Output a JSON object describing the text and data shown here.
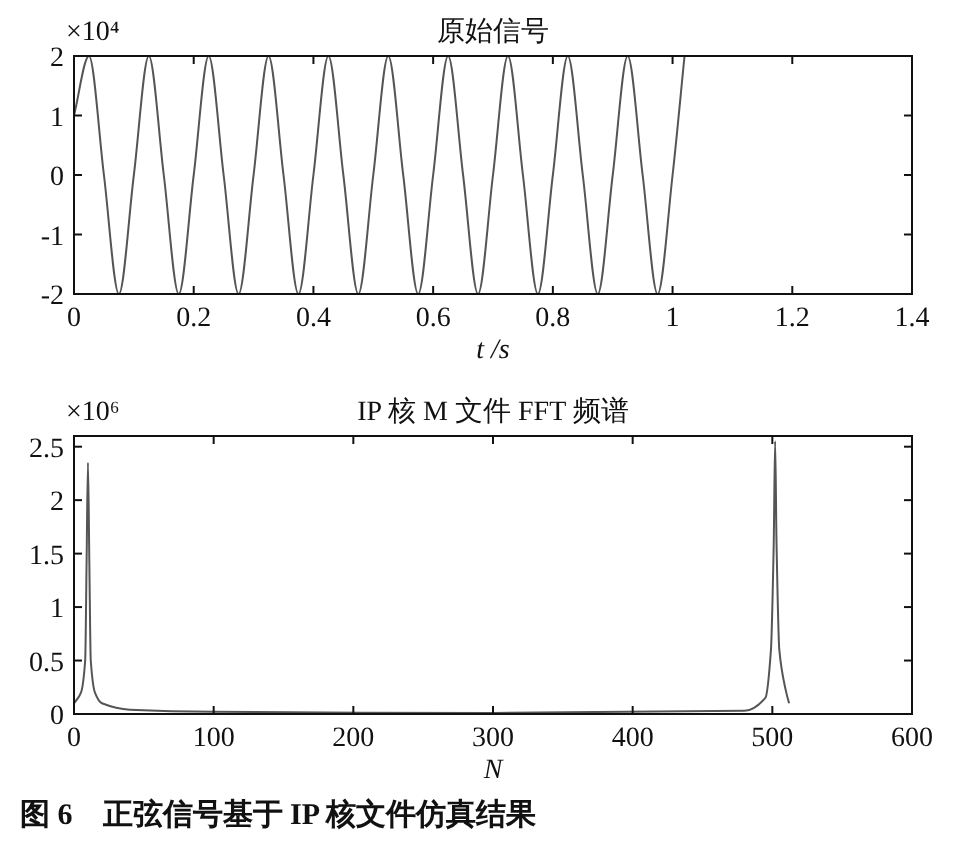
{
  "chart_data": [
    {
      "type": "line",
      "title": "原始信号",
      "xlabel": "t /s",
      "annotations": [
        "×10⁴"
      ],
      "x": [
        0,
        0.025,
        0.05,
        0.075,
        0.1,
        0.125,
        0.15,
        0.175,
        0.2,
        0.225,
        0.25,
        0.275,
        0.3,
        0.325,
        0.35,
        0.375,
        0.4,
        0.425,
        0.45,
        0.475,
        0.5,
        0.525,
        0.55,
        0.575,
        0.6,
        0.625,
        0.65,
        0.675,
        0.7,
        0.725,
        0.75,
        0.775,
        0.8,
        0.825,
        0.85,
        0.875,
        0.9,
        0.925,
        0.95,
        0.975,
        1.0,
        1.02
      ],
      "series": [
        {
          "color": "#555555",
          "values": [
            1,
            2,
            0,
            -2,
            0,
            2,
            0,
            -2,
            0,
            2,
            0,
            -2,
            0,
            2,
            0,
            -2,
            0,
            2,
            0,
            -2,
            0,
            2,
            0,
            -2,
            0,
            2,
            0,
            -2,
            0,
            2,
            0,
            -2,
            0,
            2,
            0,
            -2,
            0,
            2,
            0,
            -2,
            0,
            2
          ]
        }
      ],
      "xlim": [
        0,
        1.4
      ],
      "xticks": [
        0,
        0.2,
        0.4,
        0.6,
        0.8,
        1,
        1.2,
        1.4
      ],
      "ylim": [
        -2,
        2
      ],
      "yticks": [
        {
          "value": -2,
          "label": "-2"
        },
        {
          "value": -1,
          "label": "-1"
        },
        0,
        1,
        2
      ],
      "grid": false
    },
    {
      "type": "line",
      "title": "IP 核 M 文件 FFT 频谱",
      "xlabel": "N",
      "annotations": [
        "×10⁶",
        "图 6　正弦信号基于 IP 核文件仿真结果"
      ],
      "x": [
        0,
        5,
        8,
        9,
        10,
        11,
        12,
        15,
        20,
        40,
        100,
        300,
        480,
        495,
        499,
        501,
        502,
        503,
        505,
        510,
        512
      ],
      "series": [
        {
          "color": "#555555",
          "values": [
            0.1,
            0.2,
            0.5,
            1.4,
            2.35,
            1.4,
            0.5,
            0.2,
            0.1,
            0.04,
            0.02,
            0.01,
            0.03,
            0.15,
            0.6,
            1.6,
            2.55,
            1.6,
            0.6,
            0.2,
            0.1
          ]
        }
      ],
      "xlim": [
        0,
        600
      ],
      "xticks": [
        0,
        100,
        200,
        300,
        400,
        500,
        600
      ],
      "ylim": [
        0,
        2.6
      ],
      "yticks": [
        0,
        0.5,
        1,
        1.5,
        2,
        2.5
      ],
      "grid": false
    }
  ]
}
